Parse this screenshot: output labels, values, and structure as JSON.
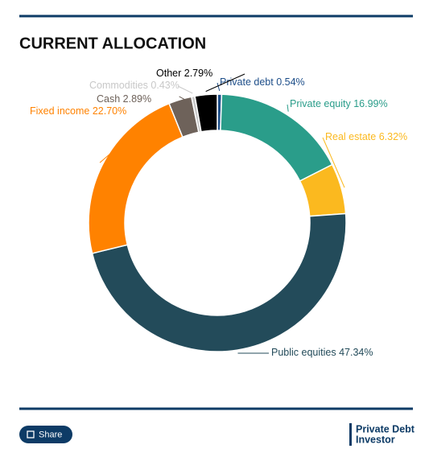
{
  "chart_data": {
    "type": "pie",
    "title": "CURRENT ALLOCATION",
    "categories": [
      "Private debt",
      "Private equity",
      "Real estate",
      "Public equities",
      "Fixed income",
      "Cash",
      "Commodities",
      "Other"
    ],
    "values": [
      0.54,
      16.99,
      6.32,
      47.34,
      22.7,
      2.89,
      0.43,
      2.79
    ],
    "value_labels": [
      "0.54%",
      "16.99%",
      "6.32%",
      "47.34%",
      "22.70%",
      "2.89%",
      "0.43%",
      "2.79%"
    ],
    "colors": [
      "#1d4e89",
      "#2a9d8a",
      "#fbb91f",
      "#234b5a",
      "#ff8200",
      "#6e625a",
      "#c8c8c8",
      "#000000"
    ]
  },
  "footer": {
    "share": "Share",
    "brand": [
      "Private Debt",
      "Investor"
    ]
  }
}
